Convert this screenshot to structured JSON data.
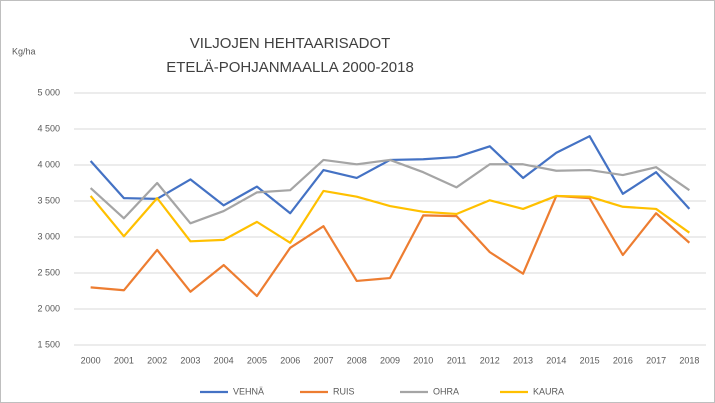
{
  "chart_data": {
    "type": "line",
    "title": "VILJOJEN HEHTAARISADOT",
    "subtitle": "ETELÄ-POHJANMAALLA 2000-2018",
    "y_label": "Kg/ha",
    "categories": [
      "2000",
      "2001",
      "2002",
      "2003",
      "2004",
      "2005",
      "2006",
      "2007",
      "2008",
      "2009",
      "2010",
      "2011",
      "2012",
      "2013",
      "2014",
      "2015",
      "2016",
      "2017",
      "2018"
    ],
    "series": [
      {
        "name": "VEHNÄ",
        "color": "#4472c4",
        "values": [
          4056,
          3540,
          3530,
          3800,
          3440,
          3700,
          3330,
          3930,
          3820,
          4070,
          4080,
          4110,
          4260,
          3820,
          4170,
          4400,
          3600,
          3900,
          3390
        ]
      },
      {
        "name": "RUIS",
        "color": "#ed7d31",
        "values": [
          2300,
          2260,
          2820,
          2240,
          2610,
          2180,
          2850,
          3150,
          2390,
          2430,
          3300,
          3290,
          2790,
          2490,
          3570,
          3540,
          2750,
          3330,
          2920
        ]
      },
      {
        "name": "OHRA",
        "color": "#a5a5a5",
        "values": [
          3680,
          3260,
          3750,
          3190,
          3360,
          3620,
          3650,
          4070,
          4010,
          4070,
          3900,
          3690,
          4010,
          4010,
          3920,
          3930,
          3860,
          3970,
          3650
        ]
      },
      {
        "name": "KAURA",
        "color": "#ffc000",
        "values": [
          3570,
          3010,
          3540,
          2940,
          2960,
          3210,
          2920,
          3640,
          3560,
          3430,
          3350,
          3320,
          3510,
          3390,
          3570,
          3560,
          3420,
          3390,
          3060
        ]
      }
    ],
    "ylim": [
      1500,
      5000
    ],
    "yticks": [
      {
        "value": 1500,
        "label": "1 500"
      },
      {
        "value": 2000,
        "label": "2 000"
      },
      {
        "value": 2500,
        "label": "2 500"
      },
      {
        "value": 3000,
        "label": "3 000"
      },
      {
        "value": 3500,
        "label": "3 500"
      },
      {
        "value": 4000,
        "label": "4 000"
      },
      {
        "value": 4500,
        "label": "4 500"
      },
      {
        "value": 5000,
        "label": "5 000"
      }
    ],
    "grid": true,
    "legend": "bottom"
  }
}
